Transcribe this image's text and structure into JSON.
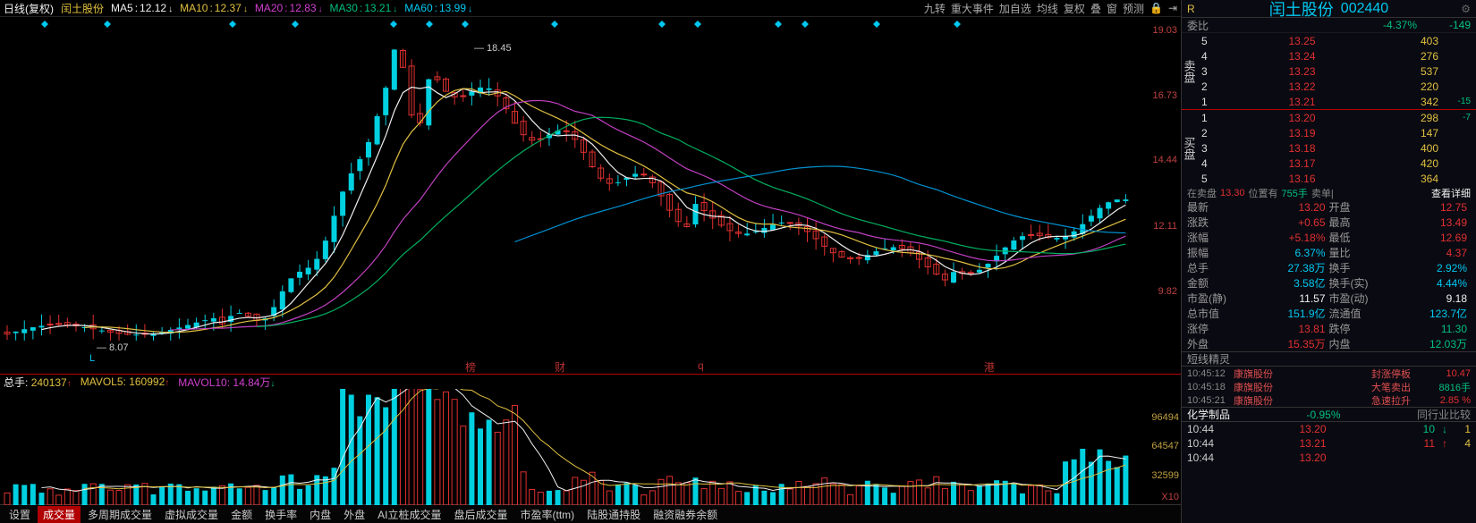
{
  "colors": {
    "bg": "#000000",
    "up_candle": "#00d0e0",
    "down_candle": "#e03030",
    "ma5": "#f0f0f0",
    "ma10": "#e0c040",
    "ma20": "#c040c0",
    "ma30": "#00b060",
    "ma60": "#0090d0",
    "axis_text": "#c04040",
    "vol_axis": "#c0a040"
  },
  "header": {
    "chart_type": "日线(复权)",
    "stock_name": "闰土股份",
    "ma_labels": [
      {
        "name": "MA5",
        "value": "12.12",
        "color": "white",
        "dir": "down"
      },
      {
        "name": "MA10",
        "value": "12.37",
        "color": "yellow",
        "dir": "down"
      },
      {
        "name": "MA20",
        "value": "12.83",
        "color": "magenta",
        "dir": "down"
      },
      {
        "name": "MA30",
        "value": "13.21",
        "color": "green",
        "dir": "down"
      },
      {
        "name": "MA60",
        "value": "13.99",
        "color": "cyan",
        "dir": "down"
      }
    ],
    "right_menu": [
      "九转",
      "重大事件",
      "加自选",
      "均线",
      "复权",
      "叠",
      "窗",
      "预测"
    ],
    "right_icons": [
      "🔒",
      "⇥"
    ]
  },
  "price_chart": {
    "ylim": [
      7.5,
      19.5
    ],
    "yticks": [
      {
        "v": 19.03,
        "label": "19.03"
      },
      {
        "v": 16.73,
        "label": "16.73"
      },
      {
        "v": 14.44,
        "label": "14.44"
      },
      {
        "v": 12.11,
        "label": "12.11"
      },
      {
        "v": 9.82,
        "label": "9.82"
      }
    ],
    "peak_label": "18.45",
    "peak_x": 530,
    "low_label": "8.07",
    "low_x": 108,
    "low_letter": "L",
    "bottom_markers": [
      {
        "x": 520,
        "t": "榜"
      },
      {
        "x": 620,
        "t": "财"
      },
      {
        "x": 780,
        "t": "q"
      },
      {
        "x": 1100,
        "t": "港"
      }
    ],
    "diamond_markers_x": [
      50,
      120,
      260,
      330,
      440,
      480,
      520,
      620,
      740,
      780,
      870,
      900,
      980,
      1070
    ],
    "candles_simplified": {
      "comment": "Approximated OHLC series; x = index 0..130",
      "n": 131
    }
  },
  "volume": {
    "header": {
      "total_label": "总手",
      "total_value": "240137",
      "total_dir": "up",
      "mavol5_label": "MAVOL5",
      "mavol5_value": "160992",
      "mavol5_dir": "up",
      "mavol10_label": "MAVOL10",
      "mavol10_value": "14.84万",
      "mavol10_dir": "down"
    },
    "yticks": [
      {
        "v": 96494,
        "label": "96494"
      },
      {
        "v": 64547,
        "label": "64547"
      },
      {
        "v": 32599,
        "label": "32599"
      }
    ],
    "x10_label": "X10",
    "ymax": 128000
  },
  "tabs": [
    "设置",
    "成交量",
    "多周期成交量",
    "虚拟成交量",
    "金额",
    "换手率",
    "内盘",
    "外盘",
    "AI立桩成交量",
    "盘后成交量",
    "市盈率(ttm)",
    "陆股通持股",
    "融资融券余额"
  ],
  "tabs_active_index": 1,
  "side": {
    "badge": "R",
    "name": "闰土股份",
    "code": "002440",
    "ratio_row": {
      "label": "委比",
      "value": "-4.37%",
      "delta": "-149"
    },
    "asks": [
      {
        "level": "5",
        "price": "13.25",
        "qty": "403",
        "delta": ""
      },
      {
        "level": "4",
        "price": "13.24",
        "qty": "276",
        "delta": ""
      },
      {
        "level": "3",
        "price": "13.23",
        "qty": "537",
        "delta": ""
      },
      {
        "level": "2",
        "price": "13.22",
        "qty": "220",
        "delta": ""
      },
      {
        "level": "1",
        "price": "13.21",
        "qty": "342",
        "delta": "-15"
      }
    ],
    "bids": [
      {
        "level": "1",
        "price": "13.20",
        "qty": "298",
        "delta": "-7"
      },
      {
        "level": "2",
        "price": "13.19",
        "qty": "147",
        "delta": ""
      },
      {
        "level": "3",
        "price": "13.18",
        "qty": "400",
        "delta": ""
      },
      {
        "level": "4",
        "price": "13.17",
        "qty": "420",
        "delta": ""
      },
      {
        "level": "5",
        "price": "13.16",
        "qty": "364",
        "delta": ""
      }
    ],
    "ask_label": "卖盘",
    "bid_label": "买盘",
    "detail_line": {
      "pre": "在卖盘",
      "price": "13.30",
      "mid": "位置有",
      "qty": "755手",
      "sep": "卖单|",
      "link": "查看详细"
    },
    "quotes": [
      {
        "l": "最新",
        "v": "13.20",
        "c": "red",
        "l2": "开盘",
        "v2": "12.75",
        "c2": "red"
      },
      {
        "l": "涨跌",
        "v": "+0.65",
        "c": "red",
        "l2": "最高",
        "v2": "13.49",
        "c2": "red"
      },
      {
        "l": "涨幅",
        "v": "+5.18%",
        "c": "red",
        "l2": "最低",
        "v2": "12.69",
        "c2": "red"
      },
      {
        "l": "振幅",
        "v": "6.37%",
        "c": "cyan",
        "l2": "量比",
        "v2": "4.37",
        "c2": "red"
      },
      {
        "l": "总手",
        "v": "27.38万",
        "c": "cyan",
        "l2": "换手",
        "v2": "2.92%",
        "c2": "cyan"
      },
      {
        "l": "金额",
        "v": "3.58亿",
        "c": "cyan",
        "l2": "换手(实)",
        "v2": "4.44%",
        "c2": "cyan"
      },
      {
        "l": "市盈(静)",
        "v": "11.57",
        "c": "white",
        "l2": "市盈(动)",
        "v2": "9.18",
        "c2": "white"
      },
      {
        "l": "总市值",
        "v": "151.9亿",
        "c": "cyan",
        "l2": "流通值",
        "v2": "123.7亿",
        "c2": "cyan"
      },
      {
        "l": "涨停",
        "v": "13.81",
        "c": "red",
        "l2": "跌停",
        "v2": "11.30",
        "c2": "green"
      },
      {
        "l": "外盘",
        "v": "15.35万",
        "c": "red",
        "l2": "内盘",
        "v2": "12.03万",
        "c2": "green"
      }
    ],
    "alert_title": "短线精灵",
    "alerts": [
      {
        "t": "10:45:12",
        "n": "康旗股份",
        "d": "封涨停板",
        "v": "10.47",
        "c": "red"
      },
      {
        "t": "10:45:18",
        "n": "康旗股份",
        "d": "大笔卖出",
        "v": "8816手",
        "c": "green"
      },
      {
        "t": "10:45:21",
        "n": "康旗股份",
        "d": "急速拉升",
        "v": "2.85 %",
        "c": "red"
      }
    ],
    "industry_row": {
      "name": "化学制品",
      "chg": "-0.95%",
      "link": "同行业比较"
    },
    "ticks": [
      {
        "t": "10:44",
        "p": "13.20",
        "pc": "red",
        "q": "10",
        "a": "↓",
        "ac": "green",
        "extra": "1"
      },
      {
        "t": "10:44",
        "p": "13.21",
        "pc": "red",
        "q": "11",
        "a": "↑",
        "ac": "red",
        "extra": "4"
      },
      {
        "t": "10:44",
        "p": "13.20",
        "pc": "red",
        "q": "",
        "a": "",
        "ac": "",
        "extra": ""
      }
    ]
  }
}
